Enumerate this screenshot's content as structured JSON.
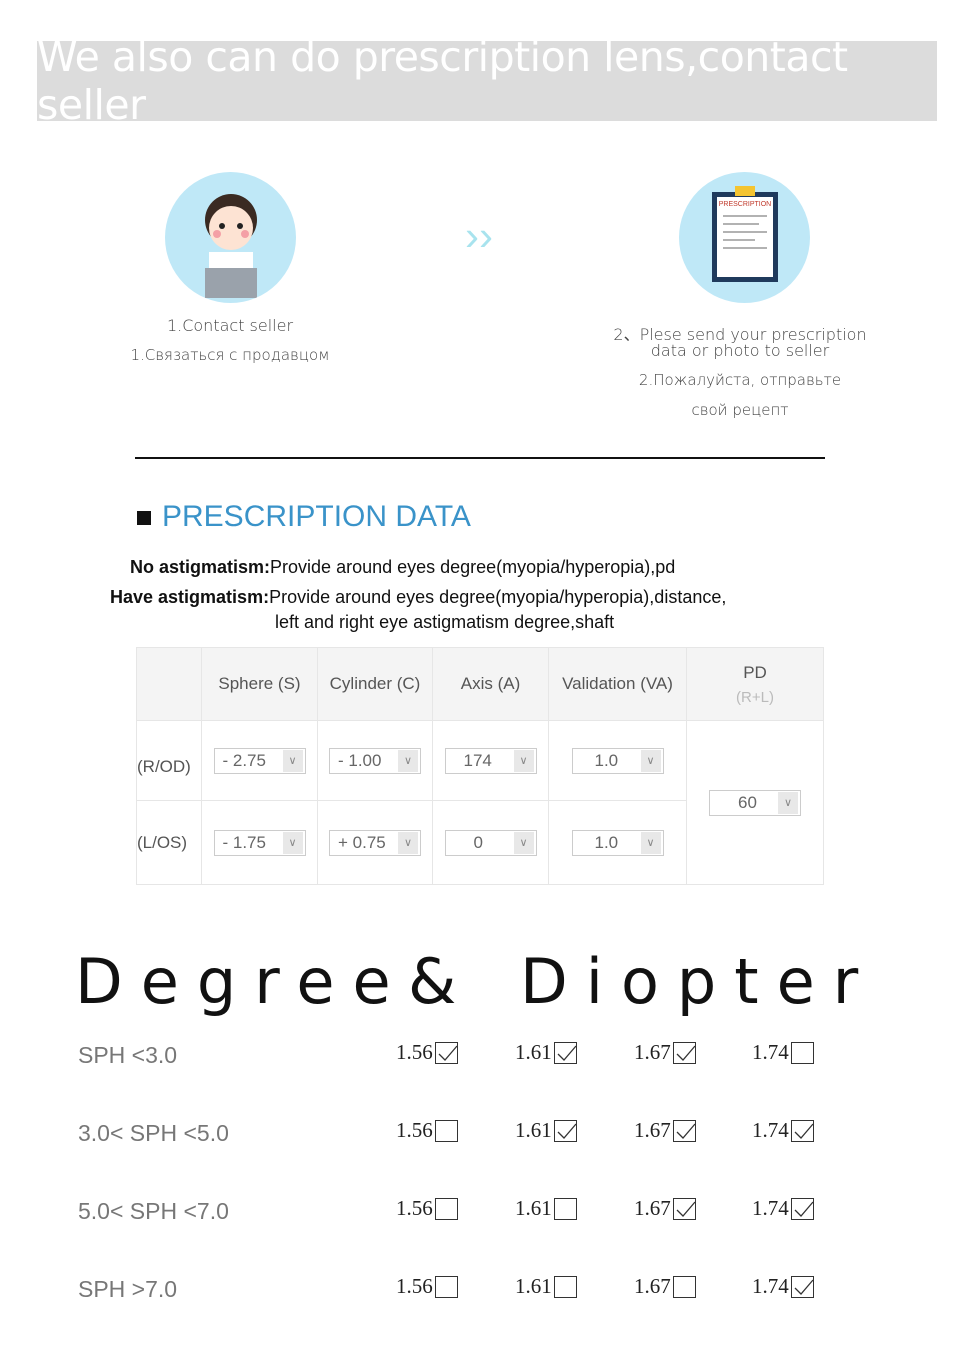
{
  "banner": "We also can do prescription lens,contact seller",
  "step1": {
    "en": "1.Contact seller",
    "ru": "1.Связаться с продавцом",
    "icon": "customer-service-icon"
  },
  "arrow": "››",
  "step2": {
    "en1": "2、Plese send your prescription",
    "en2": "data or photo to seller",
    "ru1": "2.Пожалуйста, отправьте",
    "ru2": "свой рецепт",
    "icon": "prescription-clipboard-icon",
    "doc_title": "PRESCRIPTION"
  },
  "section_title": "PRESCRIPTION DATA",
  "no_astig": {
    "label": "No astigmatism:",
    "text": "Provide around eyes degree(myopia/hyperopia),pd"
  },
  "have_astig": {
    "label": "Have astigmatism:",
    "text": "Provide around eyes degree(myopia/hyperopia),distance,",
    "text2": "left and right eye astigmatism degree,shaft"
  },
  "table": {
    "headers": [
      "Sphere (S)",
      "Cylinder (C)",
      "Axis (A)",
      "Validation (VA)"
    ],
    "pd": "PD",
    "pd_sub": "(R+L)",
    "rows": [
      {
        "label": "(R/OD)",
        "values": [
          "- 2.75",
          "- 1.00",
          "174",
          "1.0"
        ]
      },
      {
        "label": "(L/OS)",
        "values": [
          "- 1.75",
          "+ 0.75",
          "0",
          "1.0"
        ]
      }
    ],
    "pd_value": "60"
  },
  "degree": {
    "word1": "Degree",
    "amp": "&",
    "word2": "Diopter"
  },
  "lens_rows": [
    {
      "label": "SPH <3.0",
      "options": [
        {
          "index": "1.56",
          "checked": true
        },
        {
          "index": "1.61",
          "checked": true
        },
        {
          "index": "1.67",
          "checked": true
        },
        {
          "index": "1.74",
          "checked": false
        }
      ]
    },
    {
      "label": "3.0< SPH <5.0",
      "options": [
        {
          "index": "1.56",
          "checked": false
        },
        {
          "index": "1.61",
          "checked": true
        },
        {
          "index": "1.67",
          "checked": true
        },
        {
          "index": "1.74",
          "checked": true
        }
      ]
    },
    {
      "label": "5.0< SPH <7.0",
      "options": [
        {
          "index": "1.56",
          "checked": false
        },
        {
          "index": "1.61",
          "checked": false
        },
        {
          "index": "1.67",
          "checked": true
        },
        {
          "index": "1.74",
          "checked": true
        }
      ]
    },
    {
      "label": "SPH >7.0",
      "options": [
        {
          "index": "1.56",
          "checked": false
        },
        {
          "index": "1.61",
          "checked": false
        },
        {
          "index": "1.67",
          "checked": false
        },
        {
          "index": "1.74",
          "checked": true
        }
      ]
    }
  ]
}
